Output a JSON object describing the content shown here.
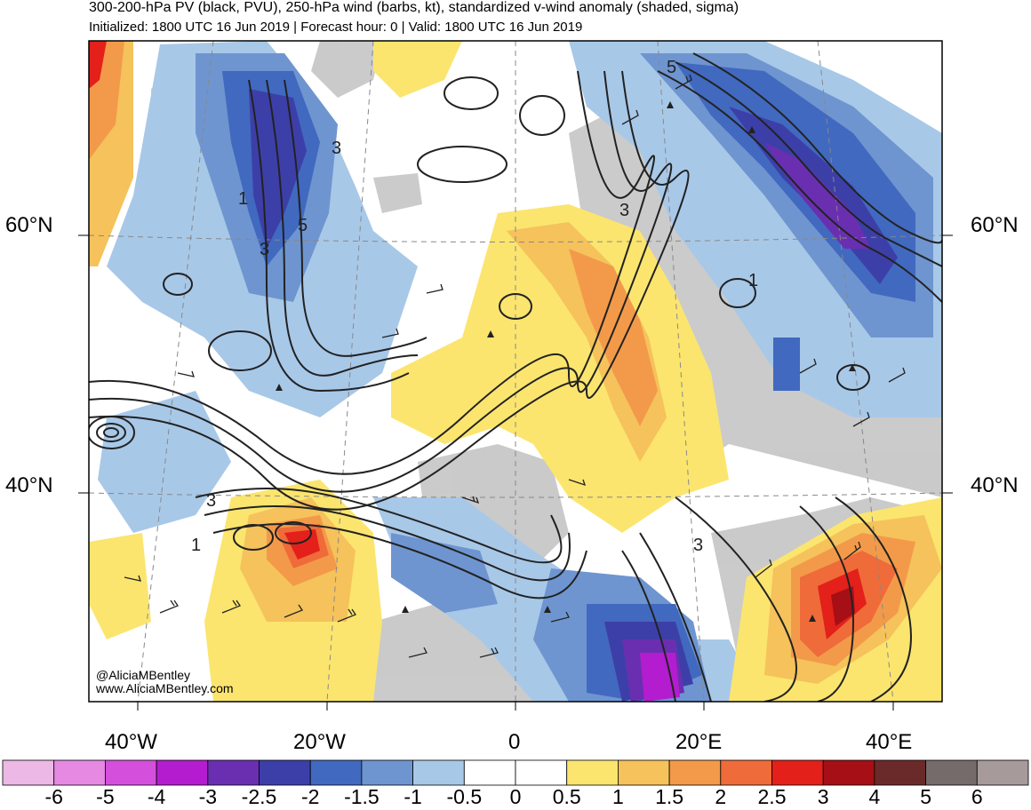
{
  "header": {
    "title": "300-200-hPa PV (black, PVU), 250-hPa wind (barbs, kt), standardized v-wind anomaly (shaded, sigma)",
    "subtitle": "Initialized: 1800 UTC 16 Jun 2019 | Forecast hour: 0 | Valid: 1800 UTC 16 Jun 2019"
  },
  "map": {
    "lat_labels": {
      "left_60": "60°N",
      "left_40": "40°N",
      "right_60": "60°N",
      "right_40": "40°N"
    },
    "lon_labels": [
      "40°W",
      "20°W",
      "0",
      "20°E",
      "40°E"
    ],
    "contour_labels": [
      "5",
      "3",
      "3",
      "5",
      "3",
      "1",
      "1",
      "3",
      "1",
      "3"
    ],
    "watermark": {
      "handle": "@AliciaMBentley",
      "url": "www.AliciaMBentley.com"
    }
  },
  "colorbar": {
    "labels": [
      "-6",
      "-5",
      "-4",
      "-3",
      "-2.5",
      "-2",
      "-1.5",
      "-1",
      "-0.5",
      "0",
      "0.5",
      "1",
      "1.5",
      "2",
      "2.5",
      "3",
      "4",
      "5",
      "6"
    ],
    "colors": [
      "#ecb9e6",
      "#e689e3",
      "#d44fdc",
      "#b41ccf",
      "#6a2fb0",
      "#3d3fa8",
      "#4169bf",
      "#6e95d0",
      "#a8c8e8",
      "#ffffff",
      "#ffffff",
      "#fbe56e",
      "#f5c25b",
      "#f39a4a",
      "#ef6b39",
      "#e3201a",
      "#a50f15",
      "#6b2a2a",
      "#756b6b",
      "#a69a9a"
    ]
  }
}
